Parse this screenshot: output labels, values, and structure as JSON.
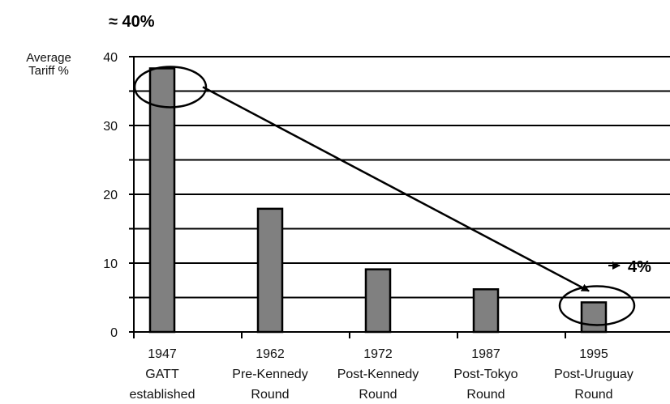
{
  "chart_data": {
    "type": "bar",
    "ylabel": [
      "Average",
      "Tariff %"
    ],
    "ylim": [
      0,
      40
    ],
    "yticks": [
      0,
      10,
      20,
      30,
      40
    ],
    "grid": true,
    "categories": [
      [
        "1947",
        "GATT",
        "established"
      ],
      [
        "1962",
        "Pre-Kennedy",
        "Round"
      ],
      [
        "1972",
        "Post-Kennedy",
        "Round"
      ],
      [
        "1987",
        "Post-Tokyo",
        "Round"
      ],
      [
        "1995",
        "Post-Uruguay",
        "Round"
      ]
    ],
    "values": [
      38.3,
      17.9,
      9.1,
      6.2,
      4.3
    ],
    "annotations": {
      "start_label": "≈ 40%",
      "end_label": "4%",
      "highlighted_bars": [
        0,
        4
      ]
    },
    "colors": {
      "bar_fill": "#808080",
      "bar_stroke": "#000000",
      "grid": "#000000"
    }
  }
}
